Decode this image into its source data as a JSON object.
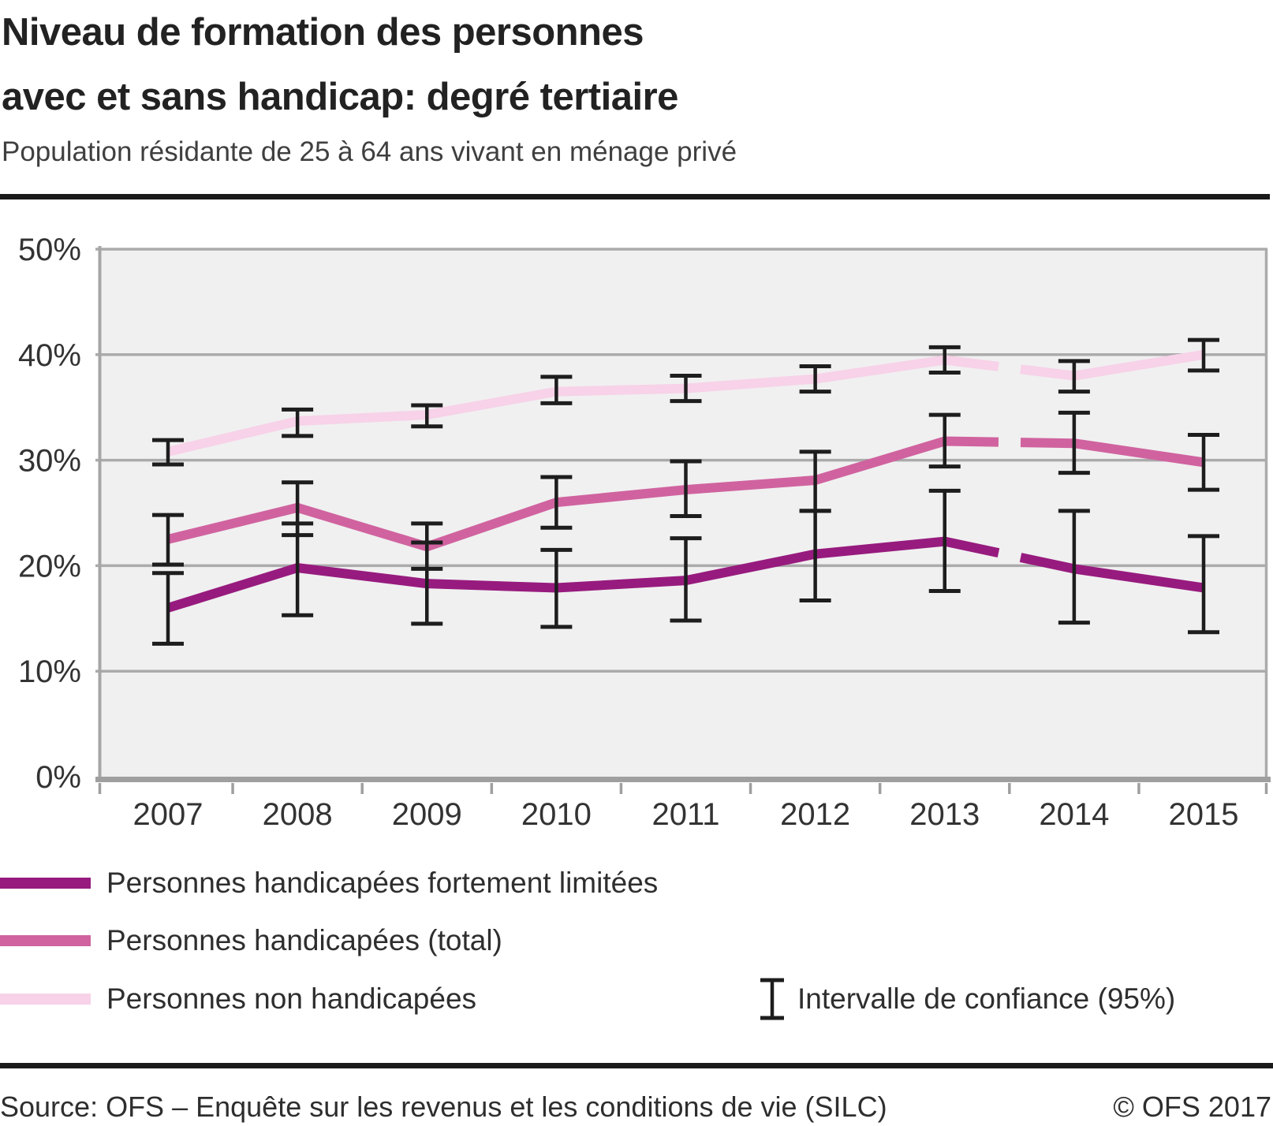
{
  "header": {
    "title_line1": "Niveau de formation des personnes",
    "title_line2": "avec et sans handicap: degré tertiaire",
    "subtitle": "Population résidante de 25 à 64 ans vivant en ménage privé"
  },
  "chart_data": {
    "type": "line",
    "title": "Niveau de formation des personnes avec et sans handicap: degré tertiaire",
    "subtitle": "Population résidante de 25 à 64 ans vivant en ménage privé",
    "categories": [
      "2007",
      "2008",
      "2009",
      "2010",
      "2011",
      "2012",
      "2013",
      "2014",
      "2015"
    ],
    "ylim": [
      0,
      50
    ],
    "ytick_values": [
      50,
      40,
      30,
      20,
      10,
      0
    ],
    "ytick_labels": [
      "50%",
      "40%",
      "30%",
      "20%",
      "10%",
      "0%"
    ],
    "grid": "horizontal",
    "legend_position": "bottom-left",
    "series_break_between": [
      "2013",
      "2014"
    ],
    "error_bar_label": "Intervalle de confiance (95%)",
    "series": [
      {
        "name": "Personnes handicapées fortement limitées",
        "color": "#971b7e",
        "values": [
          16.0,
          19.8,
          18.3,
          17.9,
          18.6,
          21.1,
          22.3,
          19.7,
          17.9
        ],
        "ci_low": [
          12.6,
          15.3,
          14.5,
          14.2,
          14.8,
          16.7,
          17.6,
          14.6,
          13.7
        ],
        "ci_high": [
          19.3,
          24.0,
          22.2,
          21.5,
          22.6,
          25.2,
          27.1,
          25.2,
          22.8
        ]
      },
      {
        "name": "Personnes handicapées (total)",
        "color": "#d0639f",
        "values": [
          22.5,
          25.5,
          21.8,
          26.0,
          27.2,
          28.1,
          31.8,
          31.6,
          29.8
        ],
        "ci_low": [
          20.1,
          22.9,
          19.7,
          23.6,
          24.7,
          25.2,
          29.4,
          28.8,
          27.2
        ],
        "ci_high": [
          24.8,
          27.9,
          24.0,
          28.4,
          29.9,
          30.8,
          34.3,
          34.5,
          32.4
        ]
      },
      {
        "name": "Personnes non handicapées",
        "color": "#f7d2e8",
        "values": [
          30.8,
          33.7,
          34.3,
          36.5,
          36.8,
          37.7,
          39.5,
          38.0,
          40.0
        ],
        "ci_low": [
          29.6,
          32.3,
          33.2,
          35.4,
          35.6,
          36.5,
          38.3,
          36.5,
          38.5
        ],
        "ci_high": [
          31.9,
          34.8,
          35.2,
          37.9,
          38.0,
          38.9,
          40.7,
          39.4,
          41.4
        ]
      }
    ],
    "style": {
      "plot_background": "#f0f0f0",
      "gridline_color": "#ababab",
      "axis_color": "#9f9f9f",
      "error_bar_color": "#1d1d1d",
      "label_color": "#333333"
    }
  },
  "footer": {
    "source": "Source: OFS – Enquête sur les revenus et les conditions de vie (SILC)",
    "copyright": "© OFS 2017"
  }
}
